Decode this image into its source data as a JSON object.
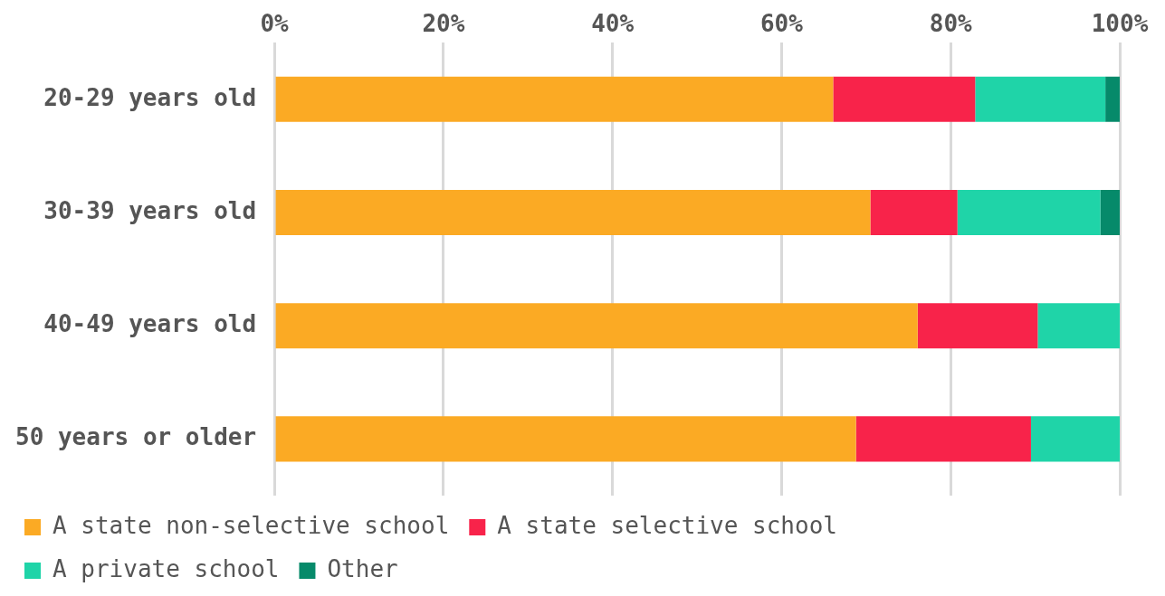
{
  "chart_data": {
    "type": "bar",
    "orientation": "horizontal",
    "stacked": true,
    "categories": [
      "20-29 years old",
      "30-39 years old",
      "40-49 years old",
      "50 years or older"
    ],
    "series": [
      {
        "name": "A state non-selective school",
        "color": "#fbaa24",
        "values": [
          66.1,
          70.5,
          76.1,
          68.8
        ]
      },
      {
        "name": "A state selective school",
        "color": "#f8234a",
        "values": [
          16.8,
          10.3,
          14.2,
          20.7
        ]
      },
      {
        "name": "A private school",
        "color": "#1fd4a8",
        "values": [
          15.4,
          16.9,
          9.7,
          10.5
        ]
      },
      {
        "name": "Other",
        "color": "#068a6a",
        "values": [
          1.7,
          2.3,
          0,
          0
        ]
      }
    ],
    "xlim": [
      0,
      100
    ],
    "xticks": [
      {
        "value": 0,
        "label": "0%"
      },
      {
        "value": 20,
        "label": "20%"
      },
      {
        "value": 40,
        "label": "40%"
      },
      {
        "value": 60,
        "label": "60%"
      },
      {
        "value": 80,
        "label": "80%"
      },
      {
        "value": 100,
        "label": "100%"
      }
    ],
    "grid": "x",
    "legend": "bottom"
  }
}
